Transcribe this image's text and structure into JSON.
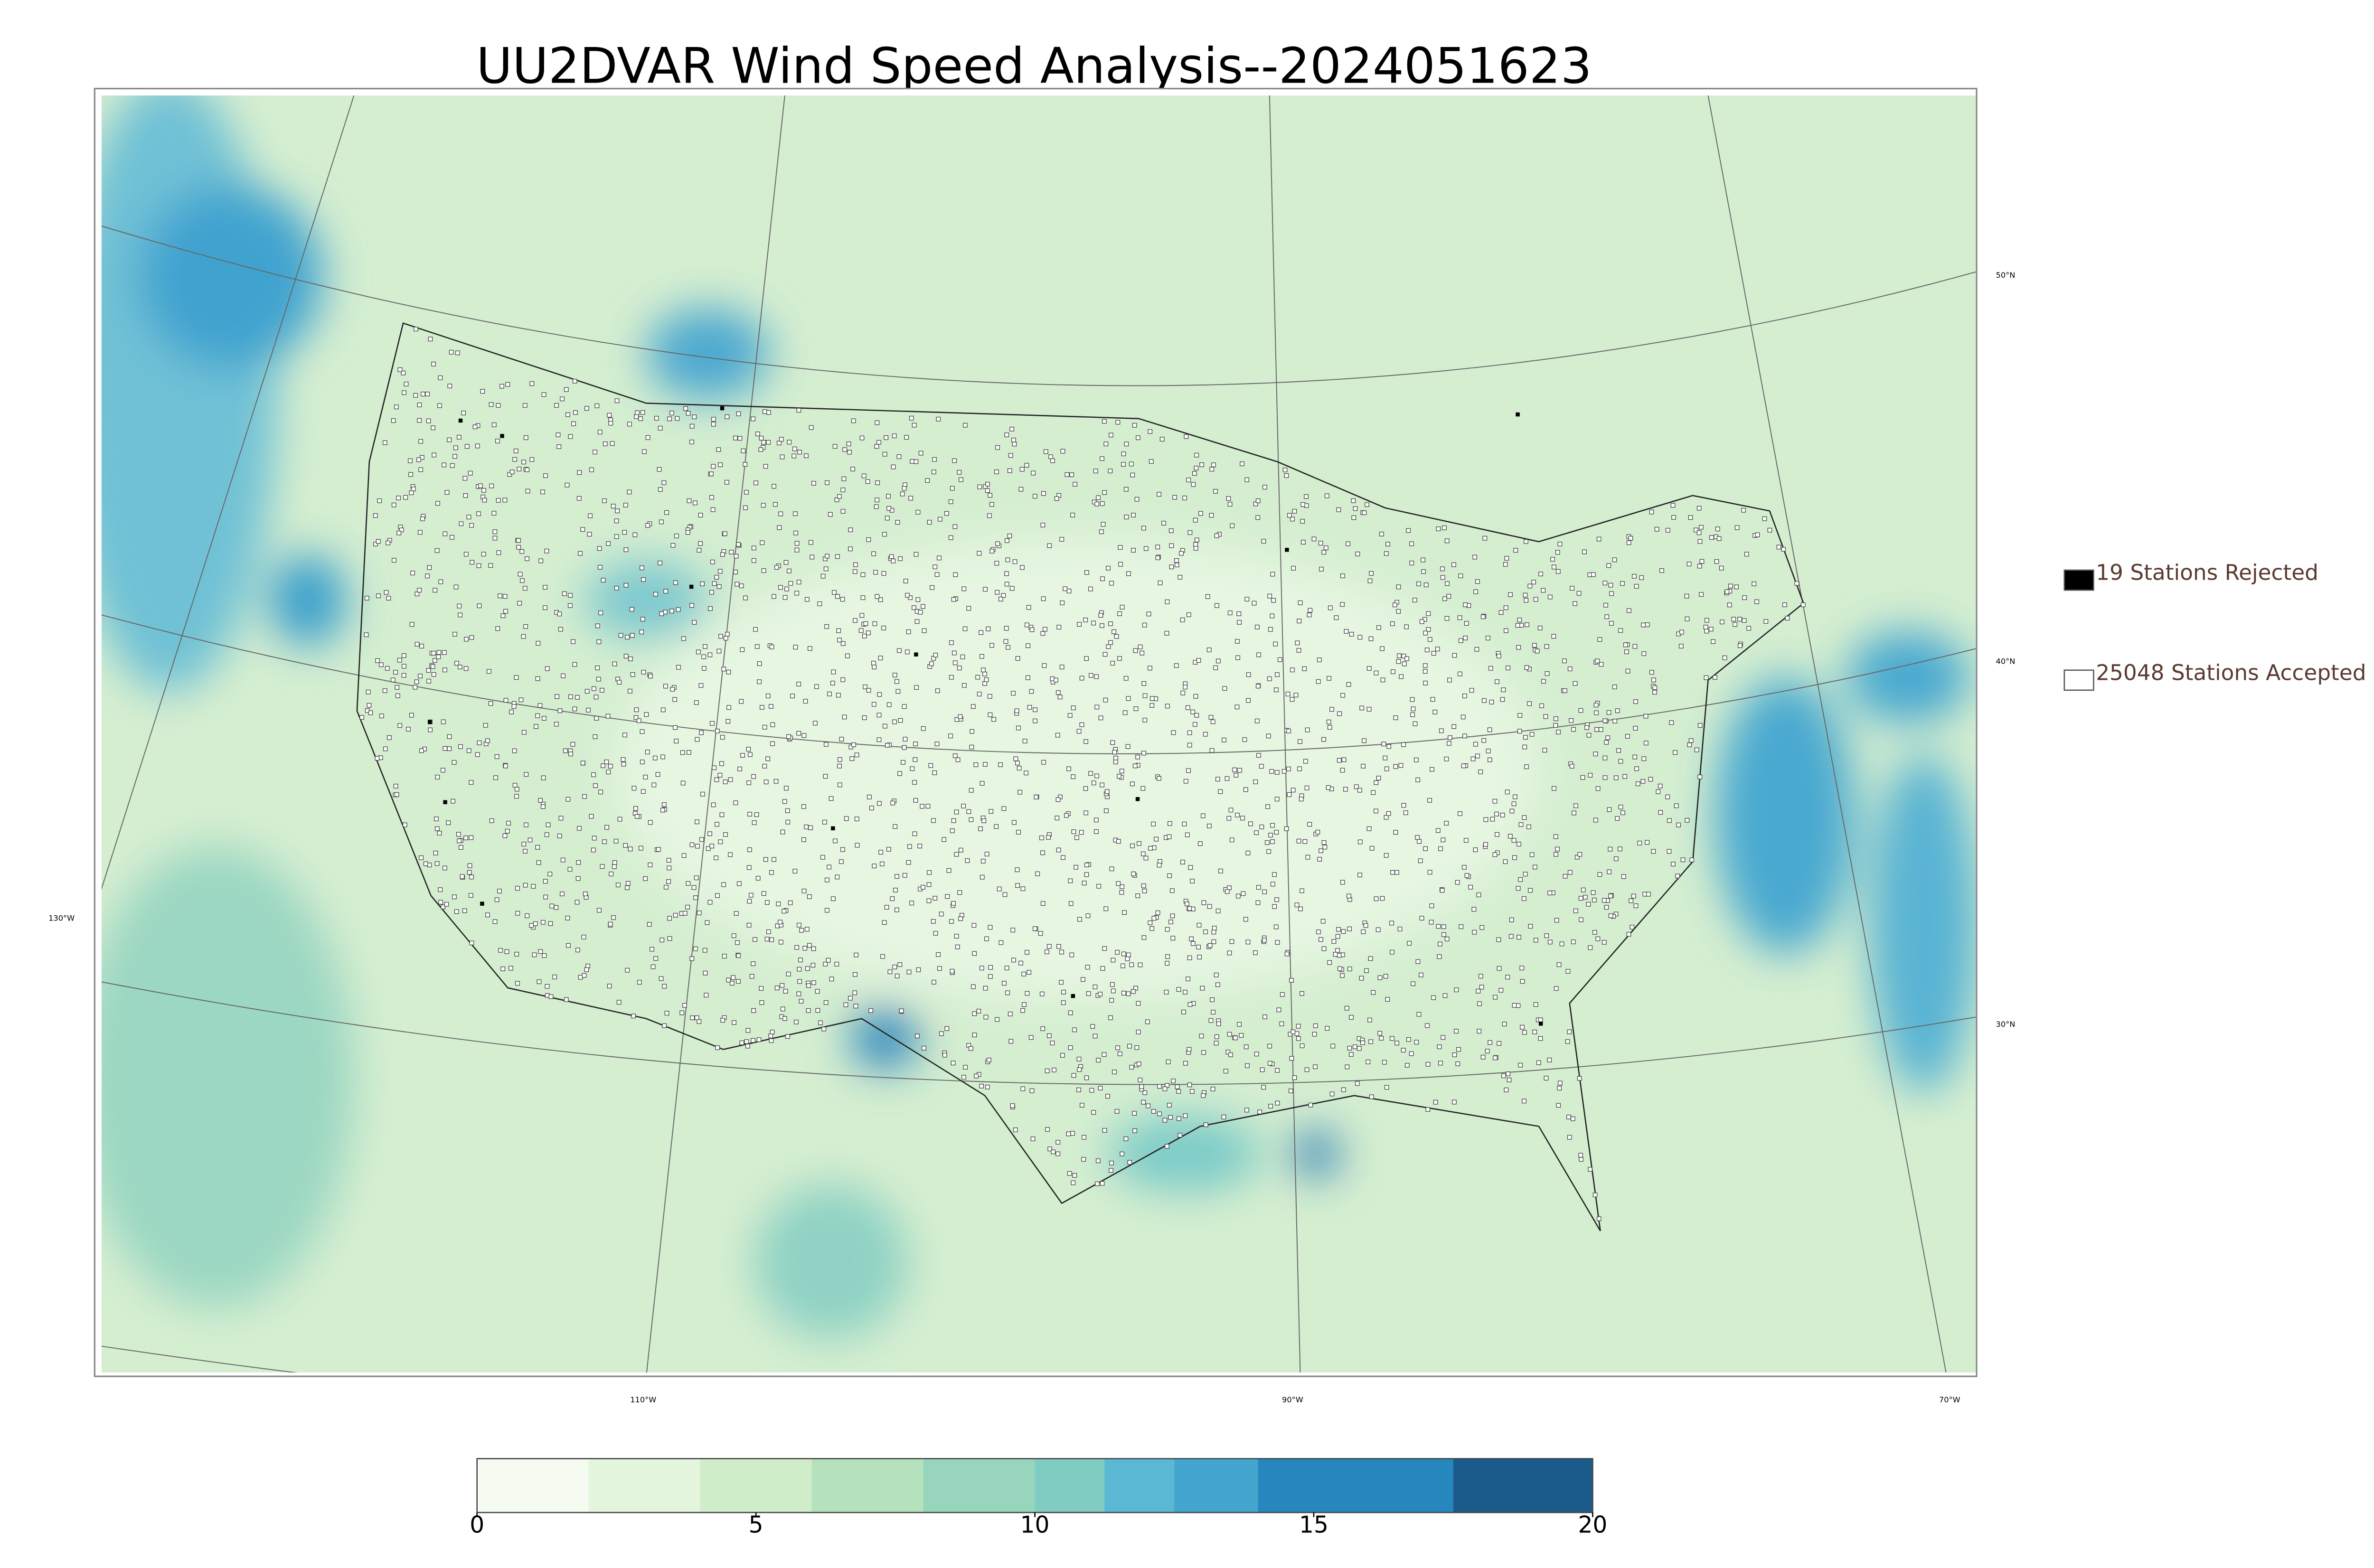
{
  "title": "UU2DVAR Wind Speed Analysis--2024051623",
  "legend": [
    {
      "label": "19 Stations Rejected",
      "color": "#000000"
    },
    {
      "label": "25048 Stations Accepted",
      "color": "#ffffff"
    }
  ],
  "graticule": {
    "lon_labels": [
      "130°W",
      "110°W",
      "90°W",
      "70°W"
    ],
    "lat_labels": [
      "50°N",
      "40°N",
      "30°N"
    ]
  },
  "colorbar": {
    "lim": [
      0,
      20
    ],
    "ticks": [
      0,
      5,
      10,
      15,
      20
    ],
    "levels": [
      0,
      2,
      4,
      6,
      8,
      10,
      11.25,
      12.5,
      14,
      17.5,
      20
    ],
    "colors": [
      "#f5fbf0",
      "#e4f5de",
      "#d0edc9",
      "#b5e2bc",
      "#97d6bd",
      "#7fcdc2",
      "#5ab8d4",
      "#43a6cf",
      "#2587bd",
      "#1b5b8b"
    ]
  }
}
